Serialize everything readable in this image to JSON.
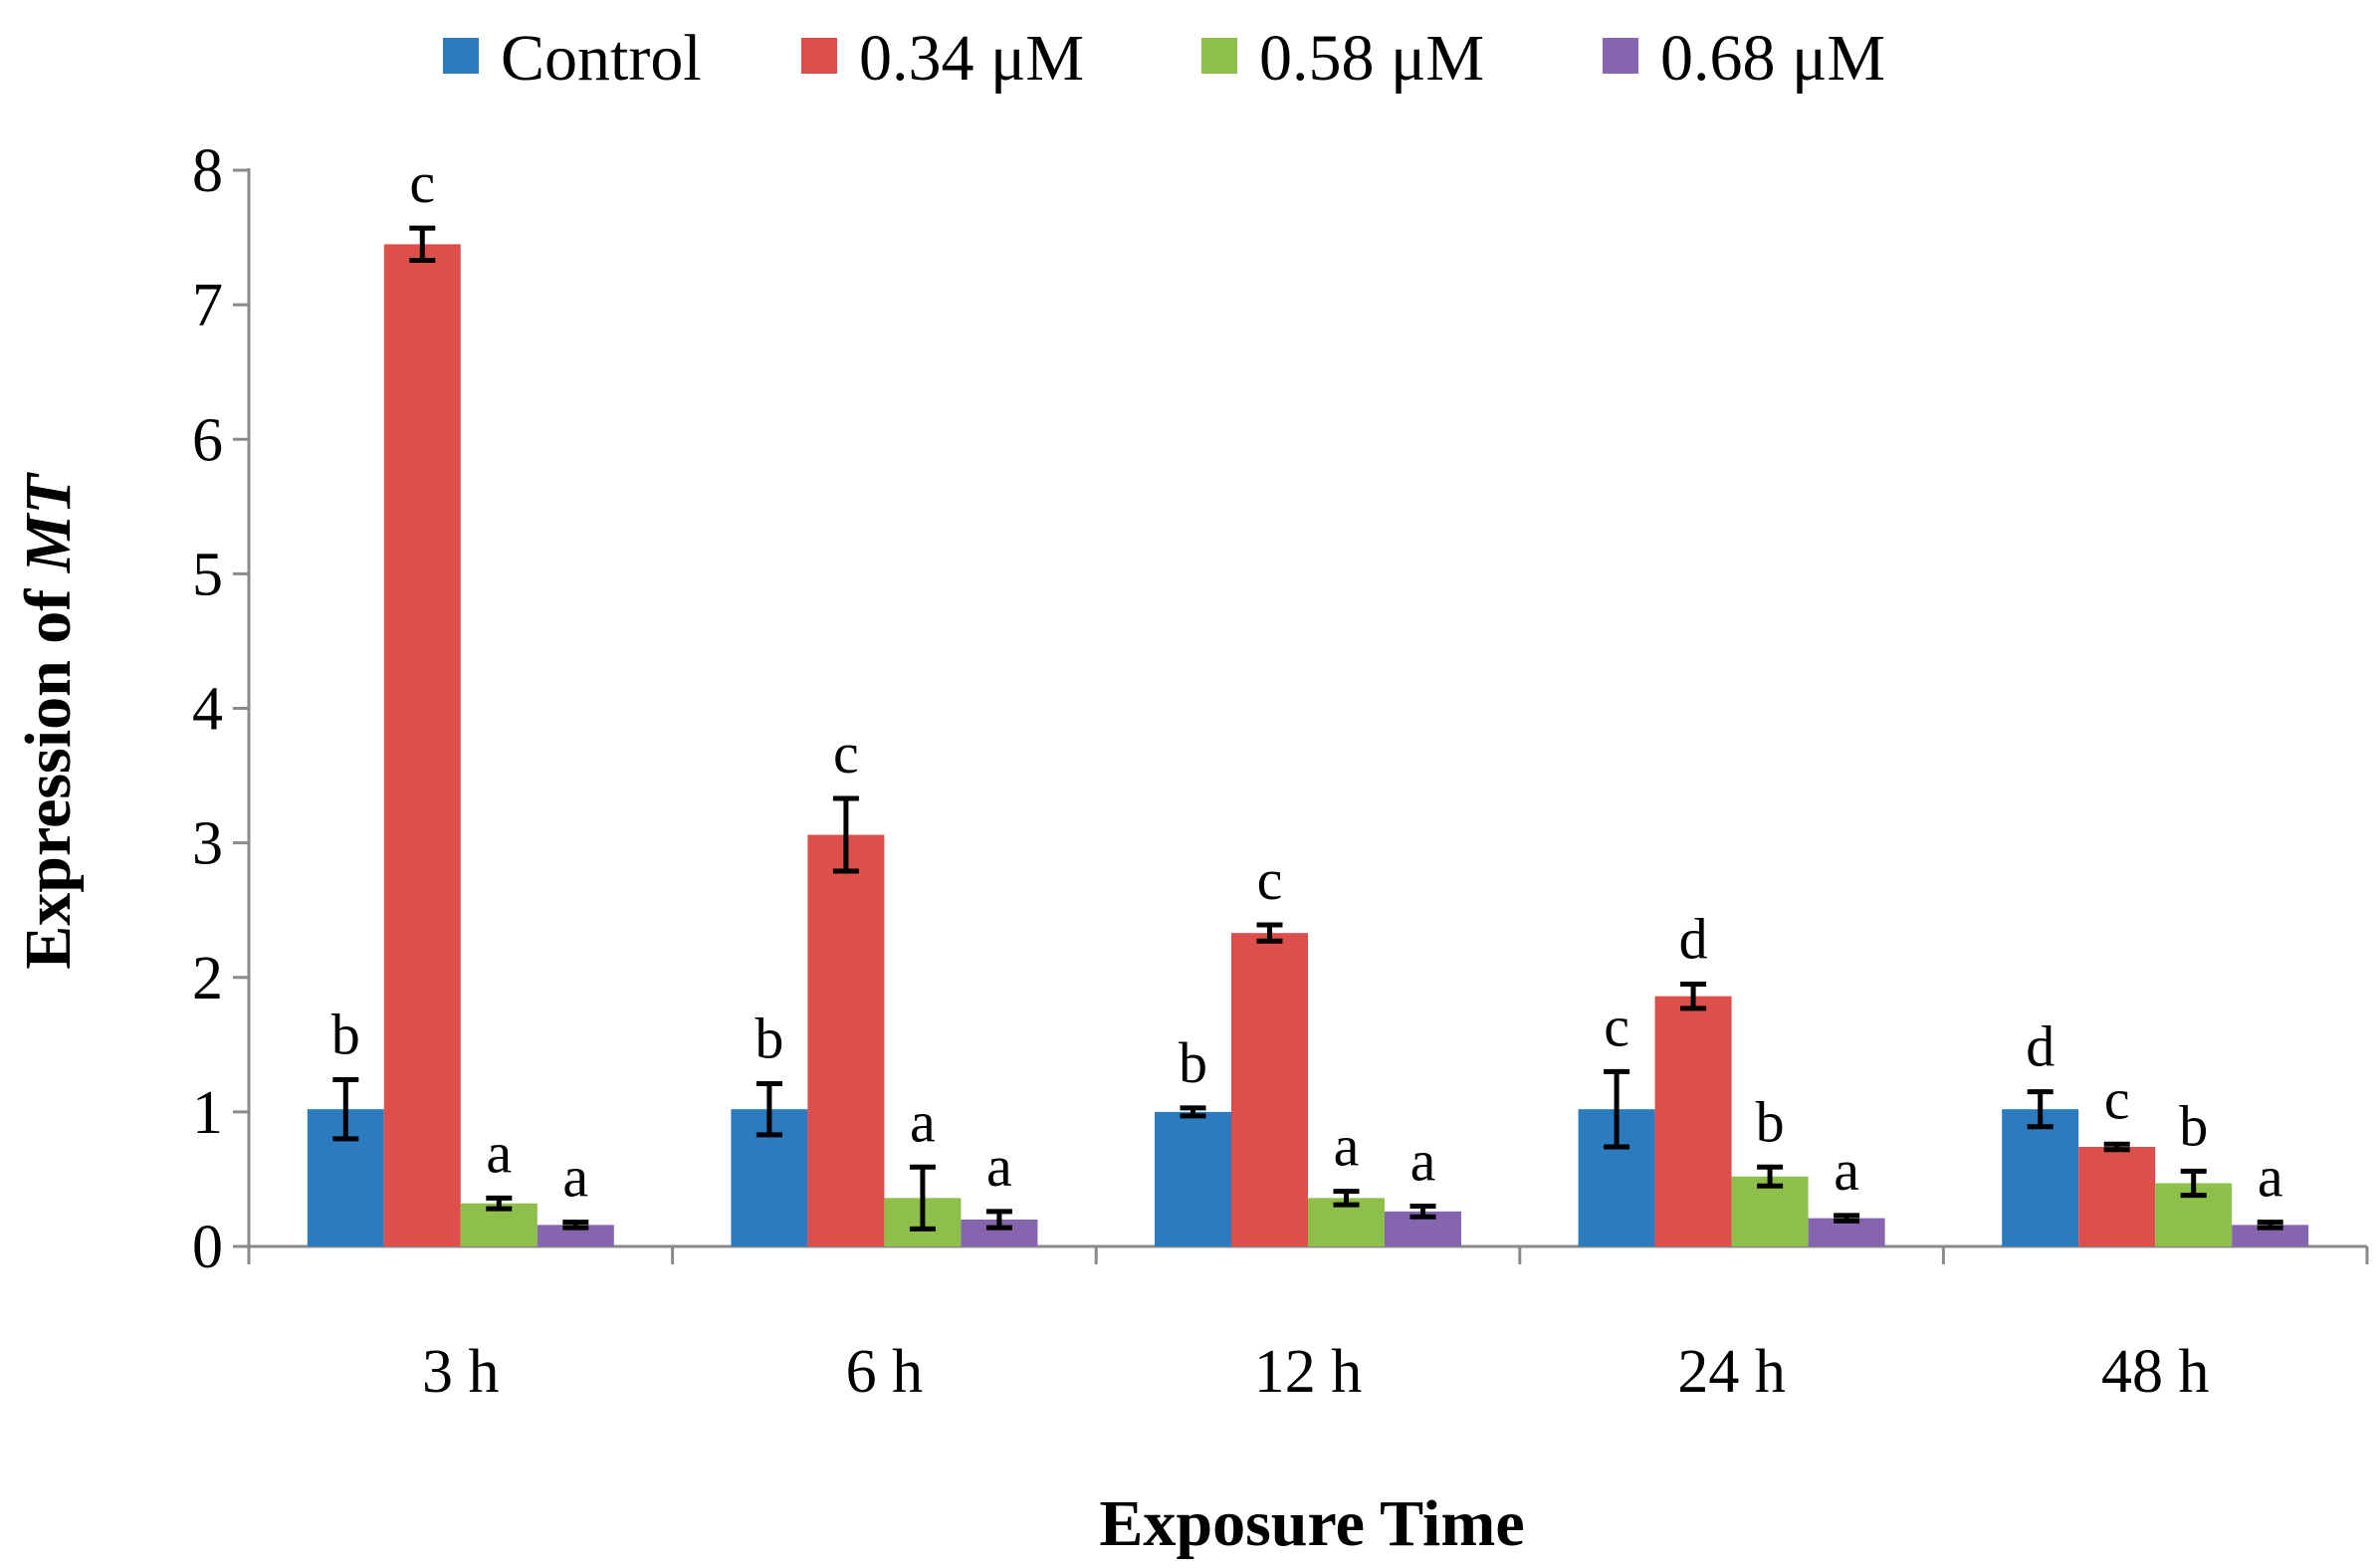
{
  "chart_data": {
    "type": "bar",
    "title": "",
    "xlabel": "Exposure Time",
    "ylabel_prefix": "Expression of ",
    "ylabel_italic": "MT",
    "ylim": [
      0,
      8
    ],
    "yticks": [
      0,
      1,
      2,
      3,
      4,
      5,
      6,
      7,
      8
    ],
    "ytick_labels": [
      "0",
      "1",
      "2",
      "3",
      "4",
      "5",
      "6",
      "7",
      "8"
    ],
    "grid": false,
    "legend_position": "top",
    "categories": [
      "3 h",
      "6 h",
      "12 h",
      "24 h",
      "48 h"
    ],
    "series": [
      {
        "name": "Control",
        "color": "#2C7BBF",
        "values": [
          1.02,
          1.02,
          1.0,
          1.02,
          1.02
        ],
        "errors": [
          0.22,
          0.19,
          0.03,
          0.28,
          0.13
        ],
        "labels": [
          "b",
          "b",
          "b",
          "c",
          "d"
        ]
      },
      {
        "name": "0.34 μM",
        "color": "#DE4F4C",
        "values": [
          7.45,
          3.06,
          2.33,
          1.86,
          0.74
        ],
        "errors": [
          0.12,
          0.27,
          0.06,
          0.09,
          0.02
        ],
        "labels": [
          "c",
          "c",
          "c",
          "d",
          "c"
        ]
      },
      {
        "name": "0.58 μM",
        "color": "#8DBF4A",
        "values": [
          0.32,
          0.36,
          0.36,
          0.52,
          0.47
        ],
        "errors": [
          0.04,
          0.23,
          0.05,
          0.07,
          0.09
        ],
        "labels": [
          "a",
          "a",
          "a",
          "b",
          "b"
        ]
      },
      {
        "name": "0.68 μM",
        "color": "#8565AE",
        "values": [
          0.16,
          0.2,
          0.26,
          0.21,
          0.16
        ],
        "errors": [
          0.02,
          0.06,
          0.04,
          0.02,
          0.02
        ],
        "labels": [
          "a",
          "a",
          "a",
          "a",
          "a"
        ]
      }
    ]
  }
}
